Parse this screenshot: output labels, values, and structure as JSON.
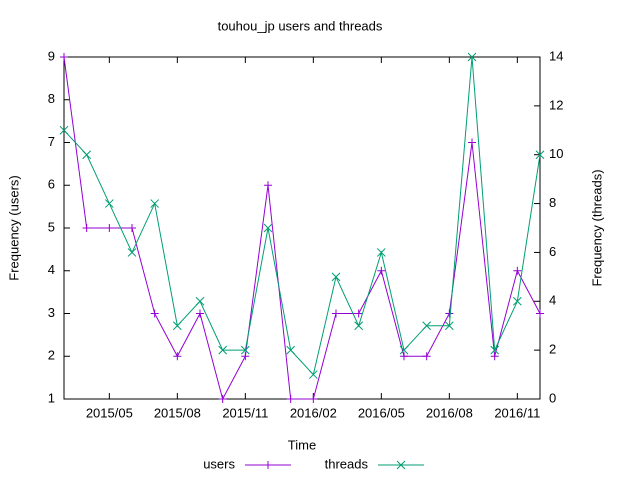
{
  "chart_data": {
    "type": "line",
    "title": "touhou_jp users and threads",
    "xlabel": "Time",
    "ylabel": "Frequency (users)",
    "y2label": "Frequency (threads)",
    "x": [
      "2015/03",
      "2015/04",
      "2015/05",
      "2015/06",
      "2015/07",
      "2015/08",
      "2015/09",
      "2015/10",
      "2015/11",
      "2015/12",
      "2016/01",
      "2016/02",
      "2016/03",
      "2016/04",
      "2016/05",
      "2016/06",
      "2016/07",
      "2016/08",
      "2016/09",
      "2016/10",
      "2016/11",
      "2016/12"
    ],
    "xlim": [
      "2015/03",
      "2016/12"
    ],
    "xticks": [
      "2015/05",
      "2015/08",
      "2015/11",
      "2016/02",
      "2016/05",
      "2016/08",
      "2016/11"
    ],
    "ylim": [
      1,
      9
    ],
    "yticks": [
      1,
      2,
      3,
      4,
      5,
      6,
      7,
      8,
      9
    ],
    "y2lim": [
      0,
      14
    ],
    "y2ticks": [
      0,
      2,
      4,
      6,
      8,
      10,
      12,
      14
    ],
    "legend": "bottom",
    "series": [
      {
        "name": "users",
        "color": "#9400d3",
        "marker": "plus",
        "values": [
          9,
          5,
          5,
          5,
          3,
          2,
          3,
          1,
          2,
          6,
          1,
          1,
          3,
          3,
          4,
          2,
          2,
          3,
          7,
          2,
          4,
          3
        ]
      },
      {
        "name": "threads",
        "color": "#009e73",
        "marker": "cross",
        "axis": "y2",
        "values": [
          11,
          10,
          8,
          6,
          8,
          3,
          4,
          2,
          2,
          7,
          2,
          1,
          5,
          3,
          6,
          2,
          3,
          3,
          14,
          2,
          4,
          10
        ]
      }
    ]
  }
}
